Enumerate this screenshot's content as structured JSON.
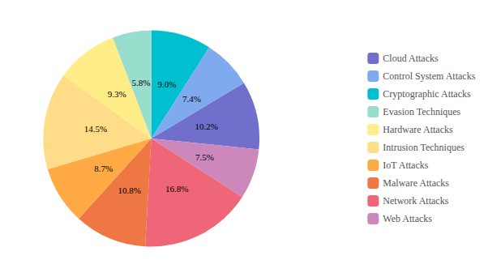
{
  "chart_data": {
    "type": "pie",
    "categories": [
      "Cryptographic Attacks",
      "Control System Attacks",
      "Cloud Attacks",
      "Web Attacks",
      "Network Attacks",
      "Malware Attacks",
      "IoT Attacks",
      "Intrusion Techniques",
      "Hardware Attacks",
      "Evasion Techniques"
    ],
    "values": [
      9.0,
      7.4,
      10.2,
      7.5,
      16.8,
      10.8,
      8.7,
      14.5,
      9.3,
      5.8
    ],
    "value_labels": [
      "9.0%",
      "7.4%",
      "10.2%",
      "7.5%",
      "16.8%",
      "10.8%",
      "8.7%",
      "14.5%",
      "9.3%",
      "5.8%"
    ],
    "colors": [
      "#00c0d0",
      "#80aaee",
      "#7070cc",
      "#cc88bb",
      "#ee6677",
      "#ee7744",
      "#ffaa44",
      "#ffdd88",
      "#ffee88",
      "#99ddcc"
    ],
    "legend_entries": [
      "Cloud Attacks",
      "Control System Attacks",
      "Cryptographic Attacks",
      "Evasion Techniques",
      "Hardware Attacks",
      "Intrusion Techniques",
      "IoT Attacks",
      "Malware Attacks",
      "Network Attacks",
      "Web Attacks"
    ],
    "legend": "right",
    "data_labels": true
  }
}
